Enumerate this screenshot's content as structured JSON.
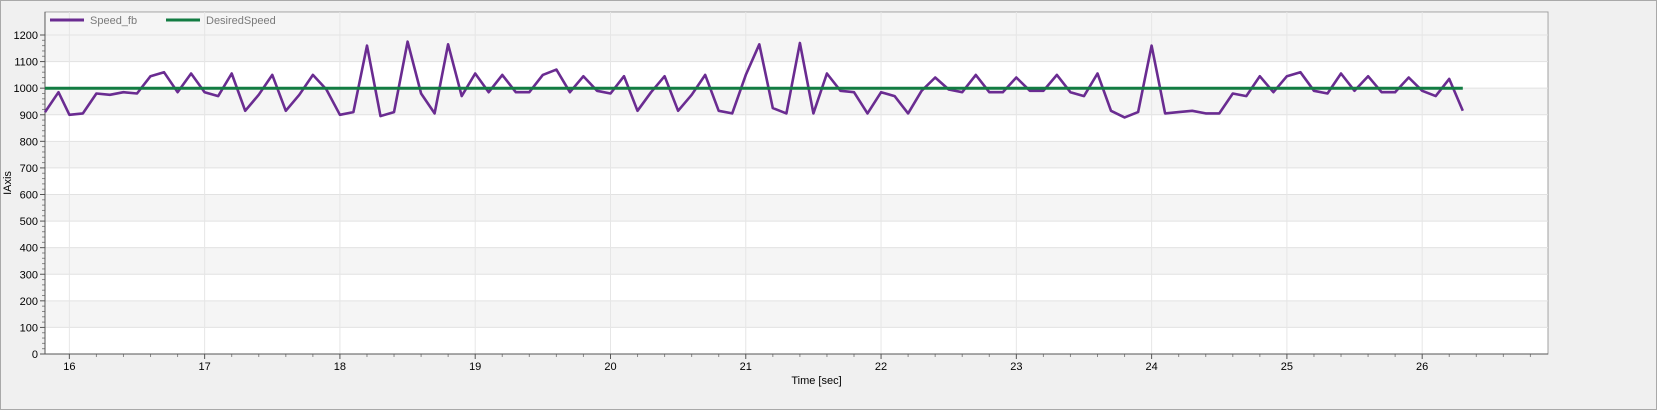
{
  "chart_data": {
    "type": "line",
    "xlabel": "Time [sec]",
    "ylabel": "IAxis",
    "xlim": [
      15.82,
      26.93
    ],
    "ylim": [
      0,
      1200
    ],
    "x_ticks": [
      16,
      17,
      18,
      19,
      20,
      21,
      22,
      23,
      24,
      25,
      26
    ],
    "y_ticks": [
      0,
      100,
      200,
      300,
      400,
      500,
      600,
      700,
      800,
      900,
      1000,
      1100,
      1200
    ],
    "grid": true,
    "legend_position": "top-left",
    "series": [
      {
        "name": "Speed_fb",
        "color": "#6a2c91",
        "x": [
          15.82,
          15.92,
          16.0,
          16.1,
          16.2,
          16.3,
          16.4,
          16.5,
          16.6,
          16.7,
          16.8,
          16.9,
          17.0,
          17.1,
          17.2,
          17.3,
          17.4,
          17.5,
          17.6,
          17.7,
          17.8,
          17.9,
          18.0,
          18.1,
          18.2,
          18.3,
          18.4,
          18.5,
          18.6,
          18.7,
          18.8,
          18.9,
          19.0,
          19.1,
          19.2,
          19.3,
          19.4,
          19.5,
          19.6,
          19.7,
          19.8,
          19.9,
          20.0,
          20.1,
          20.2,
          20.3,
          20.4,
          20.5,
          20.6,
          20.7,
          20.8,
          20.9,
          21.0,
          21.1,
          21.2,
          21.3,
          21.4,
          21.5,
          21.6,
          21.7,
          21.8,
          21.9,
          22.0,
          22.1,
          22.2,
          22.3,
          22.4,
          22.5,
          22.6,
          22.7,
          22.8,
          22.9,
          23.0,
          23.1,
          23.2,
          23.3,
          23.4,
          23.5,
          23.6,
          23.7,
          23.8,
          23.9,
          24.0,
          24.1,
          24.2,
          24.3,
          24.4,
          24.5,
          24.6,
          24.7,
          24.8,
          24.9,
          25.0,
          25.1,
          25.2,
          25.3,
          25.4,
          25.5,
          25.6,
          25.7,
          25.8,
          25.9,
          26.0,
          26.1,
          26.2,
          26.3
        ],
        "values": [
          910,
          985,
          900,
          905,
          980,
          975,
          985,
          980,
          1045,
          1060,
          985,
          1055,
          985,
          970,
          1055,
          915,
          975,
          1050,
          915,
          975,
          1050,
          995,
          900,
          910,
          1160,
          895,
          910,
          1175,
          980,
          905,
          1165,
          970,
          1055,
          985,
          1050,
          985,
          985,
          1050,
          1070,
          985,
          1045,
          990,
          980,
          1045,
          915,
          985,
          1045,
          915,
          975,
          1050,
          915,
          905,
          1050,
          1165,
          925,
          905,
          1170,
          905,
          1055,
          990,
          985,
          905,
          985,
          970,
          905,
          990,
          1040,
          995,
          985,
          1050,
          985,
          985,
          1040,
          990,
          990,
          1050,
          985,
          970,
          1055,
          915,
          890,
          910,
          1160,
          905,
          910,
          915,
          905,
          905,
          980,
          970,
          1045,
          985,
          1045,
          1060,
          990,
          980,
          1055,
          990,
          1045,
          985,
          985,
          1040,
          990,
          970,
          1035,
          915
        ]
      },
      {
        "name": "DesiredSpeed",
        "color": "#127c42",
        "x": [
          15.82,
          26.3
        ],
        "values": [
          1000,
          1000
        ]
      }
    ]
  }
}
